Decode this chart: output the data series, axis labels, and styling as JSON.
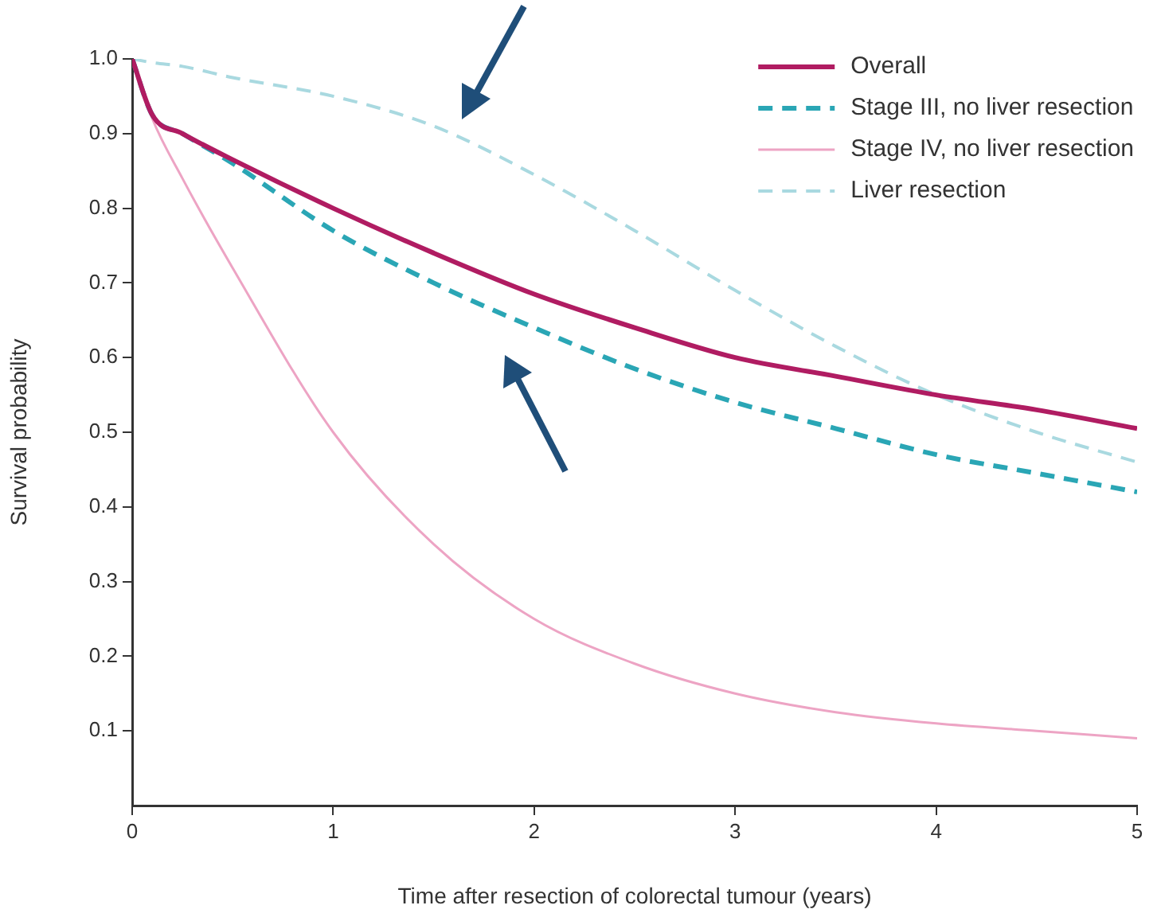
{
  "chart_data": {
    "type": "line",
    "xlabel": "Time after resection of colorectal tumour (years)",
    "ylabel": "Survival probability",
    "xlim": [
      0,
      5
    ],
    "xticks": [
      0,
      1,
      2,
      3,
      4,
      5
    ],
    "ylim": [
      0,
      1
    ],
    "yticks": [
      0.1,
      0.2,
      0.3,
      0.4,
      0.5,
      0.6,
      0.7,
      0.8,
      0.9,
      {
        "value": 1,
        "label": "1.0"
      }
    ],
    "x": [
      0,
      0.1,
      0.25,
      0.5,
      1,
      1.5,
      2,
      2.5,
      3,
      3.5,
      4,
      4.5,
      5
    ],
    "series": [
      {
        "name": "Overall",
        "color": "#b01c62",
        "line_style": "solid",
        "values": [
          1.0,
          0.925,
          0.9,
          0.865,
          0.8,
          0.74,
          0.685,
          0.64,
          0.6,
          0.575,
          0.55,
          0.53,
          0.505
        ]
      },
      {
        "name": "Stage III, no liver resection",
        "color": "#2aa6b5",
        "line_style": "dashed",
        "values": [
          1.0,
          0.925,
          0.9,
          0.86,
          0.77,
          0.7,
          0.64,
          0.585,
          0.54,
          0.505,
          0.47,
          0.445,
          0.42
        ]
      },
      {
        "name": "Stage IV, no liver resection",
        "color": "#eda4c4",
        "line_style": "solid",
        "values": [
          1.0,
          0.92,
          0.84,
          0.72,
          0.5,
          0.35,
          0.25,
          0.19,
          0.15,
          0.125,
          0.11,
          0.1,
          0.09
        ]
      },
      {
        "name": "Liver resection",
        "color": "#a9d9e0",
        "line_style": "dashed",
        "values": [
          1.0,
          0.995,
          0.99,
          0.975,
          0.95,
          0.91,
          0.845,
          0.77,
          0.69,
          0.615,
          0.55,
          0.5,
          0.46
        ]
      }
    ],
    "legend": "top right",
    "grid": false,
    "marker": "none"
  }
}
